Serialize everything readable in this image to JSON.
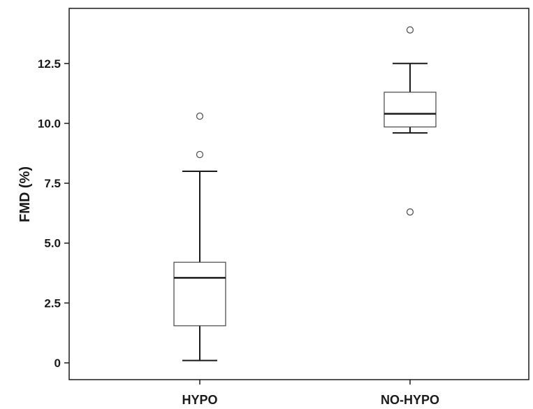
{
  "chart_data": {
    "type": "boxplot",
    "title": "",
    "xlabel": "",
    "ylabel": "FMD (%)",
    "ylim": [
      -0.7,
      14.8
    ],
    "yticks": [
      "0",
      "2.5",
      "5.0",
      "7.5",
      "10.0",
      "12.5"
    ],
    "ytick_values": [
      0,
      2.5,
      5.0,
      7.5,
      10.0,
      12.5
    ],
    "grid": false,
    "categories": [
      "HYPO",
      "NO-HYPO"
    ],
    "boxes": [
      {
        "category": "HYPO",
        "whisker_low": 0.1,
        "q1": 1.55,
        "median": 3.55,
        "q3": 4.2,
        "whisker_high": 8.0,
        "outliers": [
          8.7,
          10.3
        ]
      },
      {
        "category": "NO-HYPO",
        "whisker_low": 9.6,
        "q1": 9.85,
        "median": 10.4,
        "q3": 11.3,
        "whisker_high": 12.5,
        "outliers": [
          6.3,
          13.9
        ]
      }
    ],
    "colors": {
      "box_fill": "#ffffff",
      "stroke": "#1a1a1a",
      "outlier_stroke": "#555555"
    }
  }
}
